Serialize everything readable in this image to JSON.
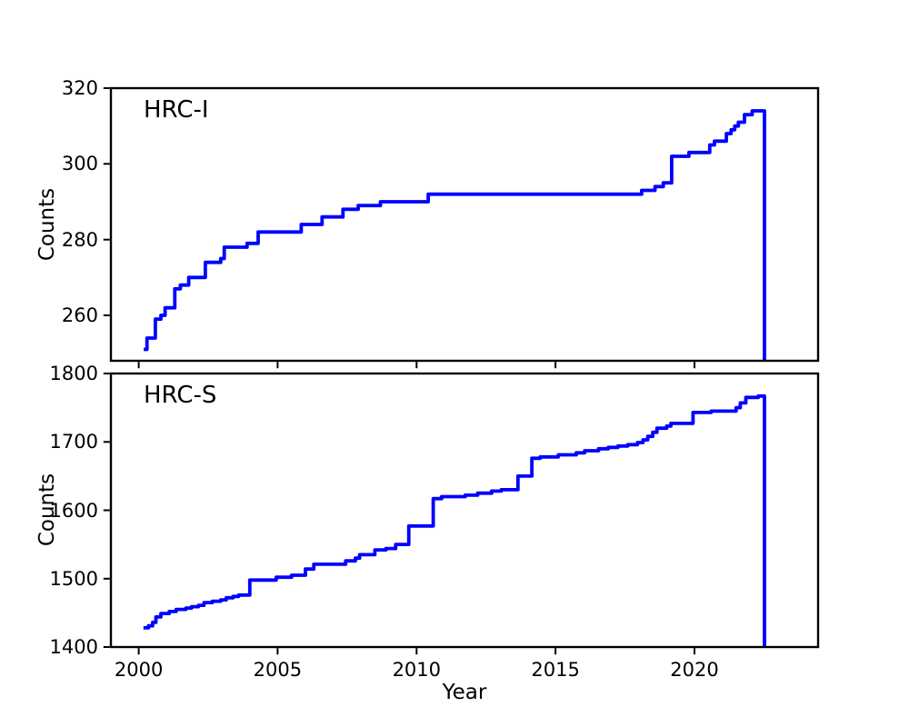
{
  "figure": {
    "background": "#ffffff",
    "axis_color": "#000000"
  },
  "x_axis": {
    "label": "Year",
    "range": [
      1999.0,
      2024.45
    ],
    "ticks": [
      2000,
      2005,
      2010,
      2015,
      2020
    ]
  },
  "chart_data": [
    {
      "type": "line",
      "subtype": "step-post",
      "panel": "top",
      "label": "HRC-I",
      "ylabel": "Counts",
      "line_color": "#0000ff",
      "ylim": [
        248,
        320
      ],
      "yticks": [
        260,
        280,
        300,
        320
      ],
      "grid": false,
      "legend": "none",
      "x_end_drop": 2022.52,
      "step_points": [
        [
          2000.18,
          251
        ],
        [
          2000.3,
          254
        ],
        [
          2000.6,
          259
        ],
        [
          2000.8,
          260
        ],
        [
          2000.95,
          262
        ],
        [
          2001.3,
          267
        ],
        [
          2001.5,
          268
        ],
        [
          2001.8,
          270
        ],
        [
          2002.4,
          274
        ],
        [
          2002.95,
          275
        ],
        [
          2003.08,
          278
        ],
        [
          2003.9,
          279
        ],
        [
          2004.3,
          282
        ],
        [
          2005.85,
          284
        ],
        [
          2006.6,
          286
        ],
        [
          2007.35,
          288
        ],
        [
          2007.9,
          289
        ],
        [
          2008.7,
          290
        ],
        [
          2010.42,
          292
        ],
        [
          2018.1,
          293
        ],
        [
          2018.58,
          294
        ],
        [
          2018.88,
          295
        ],
        [
          2019.18,
          302
        ],
        [
          2019.8,
          303
        ],
        [
          2020.55,
          305
        ],
        [
          2020.72,
          306
        ],
        [
          2021.15,
          308
        ],
        [
          2021.32,
          309
        ],
        [
          2021.45,
          310
        ],
        [
          2021.58,
          311
        ],
        [
          2021.8,
          313
        ],
        [
          2022.08,
          314
        ],
        [
          2022.52,
          248
        ]
      ]
    },
    {
      "type": "line",
      "subtype": "step-post",
      "panel": "bottom",
      "label": "HRC-S",
      "ylabel": "Counts",
      "line_color": "#0000ff",
      "ylim": [
        1400,
        1800
      ],
      "yticks": [
        1400,
        1500,
        1600,
        1700,
        1800
      ],
      "grid": false,
      "legend": "none",
      "x_end_drop": 2022.52,
      "step_points": [
        [
          2000.17,
          1428
        ],
        [
          2000.35,
          1431
        ],
        [
          2000.5,
          1436
        ],
        [
          2000.62,
          1444
        ],
        [
          2000.8,
          1449
        ],
        [
          2001.1,
          1452
        ],
        [
          2001.35,
          1455
        ],
        [
          2001.7,
          1457
        ],
        [
          2001.9,
          1459
        ],
        [
          2002.15,
          1461
        ],
        [
          2002.35,
          1465
        ],
        [
          2002.65,
          1467
        ],
        [
          2002.95,
          1469
        ],
        [
          2003.15,
          1472
        ],
        [
          2003.4,
          1474
        ],
        [
          2003.6,
          1476
        ],
        [
          2004.0,
          1498
        ],
        [
          2004.95,
          1502
        ],
        [
          2005.5,
          1505
        ],
        [
          2006.0,
          1514
        ],
        [
          2006.3,
          1521
        ],
        [
          2007.45,
          1526
        ],
        [
          2007.8,
          1530
        ],
        [
          2007.95,
          1535
        ],
        [
          2008.5,
          1542
        ],
        [
          2008.9,
          1544
        ],
        [
          2009.25,
          1550
        ],
        [
          2009.72,
          1577
        ],
        [
          2010.6,
          1617
        ],
        [
          2010.9,
          1620
        ],
        [
          2011.75,
          1622
        ],
        [
          2012.2,
          1625
        ],
        [
          2012.7,
          1628
        ],
        [
          2013.05,
          1630
        ],
        [
          2013.65,
          1650
        ],
        [
          2014.15,
          1676
        ],
        [
          2014.45,
          1678
        ],
        [
          2015.1,
          1681
        ],
        [
          2015.75,
          1684
        ],
        [
          2016.05,
          1687
        ],
        [
          2016.55,
          1690
        ],
        [
          2016.9,
          1692
        ],
        [
          2017.25,
          1694
        ],
        [
          2017.6,
          1696
        ],
        [
          2017.95,
          1699
        ],
        [
          2018.15,
          1703
        ],
        [
          2018.32,
          1708
        ],
        [
          2018.5,
          1714
        ],
        [
          2018.65,
          1720
        ],
        [
          2019.0,
          1723
        ],
        [
          2019.15,
          1727
        ],
        [
          2019.95,
          1743
        ],
        [
          2020.6,
          1745
        ],
        [
          2021.5,
          1750
        ],
        [
          2021.65,
          1757
        ],
        [
          2021.85,
          1765
        ],
        [
          2022.3,
          1767
        ],
        [
          2022.52,
          1400
        ]
      ]
    }
  ]
}
